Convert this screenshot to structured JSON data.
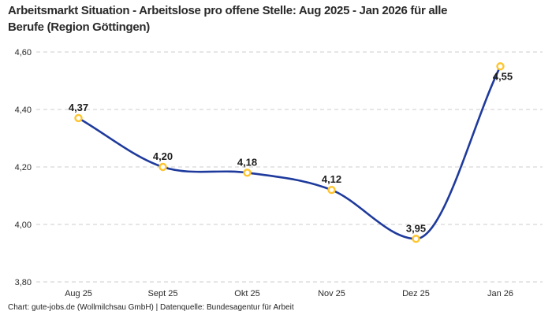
{
  "title_lines": [
    "Arbeitsmarkt Situation - Arbeitslose pro offene Stelle: Aug 2025 - Jan 2026 für alle",
    "Berufe (Region Göttingen)"
  ],
  "footer": "Chart: gute-jobs.de (Wollmilchsau GmbH) | Datenquelle: Bundesagentur für Arbeit",
  "chart_data": {
    "type": "line",
    "title": "Arbeitsmarkt Situation - Arbeitslose pro offene Stelle: Aug 2025 - Jan 2026 für alle Berufe (Region Göttingen)",
    "categories": [
      "Aug 25",
      "Sept 25",
      "Okt 25",
      "Nov 25",
      "Dez 25",
      "Jan 26"
    ],
    "values": [
      4.37,
      4.2,
      4.18,
      4.12,
      3.95,
      4.55
    ],
    "point_labels": [
      "4,37",
      "4,20",
      "4,18",
      "4,12",
      "3,95",
      "4,55"
    ],
    "point_label_positions": [
      "above",
      "above",
      "above",
      "above",
      "above",
      "below"
    ],
    "xlabel": "",
    "ylabel": "",
    "ylim": [
      3.8,
      4.6
    ],
    "yticks": [
      3.8,
      4.0,
      4.2,
      4.4,
      4.6
    ],
    "ytick_labels": [
      "3,80",
      "4,00",
      "4,20",
      "4,40",
      "4,60"
    ],
    "grid": "horizontal-dashed",
    "legend": "none",
    "colors": {
      "line": "#1e3a9c",
      "marker_ring": "#ffc52e",
      "marker_fill": "#ffffff",
      "grid": "#cccccc",
      "point_label_text": "#1d1d1d",
      "axis_text": "#2a2a2a"
    }
  }
}
